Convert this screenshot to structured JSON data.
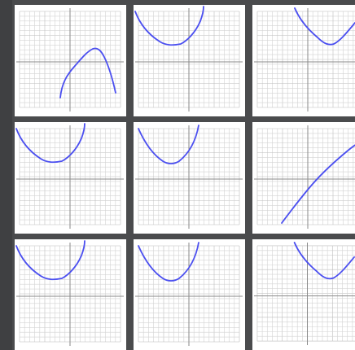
{
  "gallery": {
    "columns": 3,
    "rows": 3,
    "colors": {
      "background": "#4a4b4d",
      "tile": "#ffffff",
      "grid_minor": "#d3d3d3",
      "grid_major": "#bcbcbc",
      "axis": "#8a8a8a",
      "curve": "#4b4ff0"
    },
    "curves": [
      {
        "id": 1,
        "shape": "inverted-parabola"
      },
      {
        "id": 2,
        "shape": "parabola-top-left"
      },
      {
        "id": 3,
        "shape": "parabola-top-right"
      },
      {
        "id": 4,
        "shape": "parabola-top-left"
      },
      {
        "id": 5,
        "shape": "parabola-upper-left"
      },
      {
        "id": 6,
        "shape": "increasing-line"
      },
      {
        "id": 7,
        "shape": "parabola-top-left"
      },
      {
        "id": 8,
        "shape": "parabola-upper-left"
      },
      {
        "id": 9,
        "shape": "parabola-top-right"
      }
    ]
  }
}
